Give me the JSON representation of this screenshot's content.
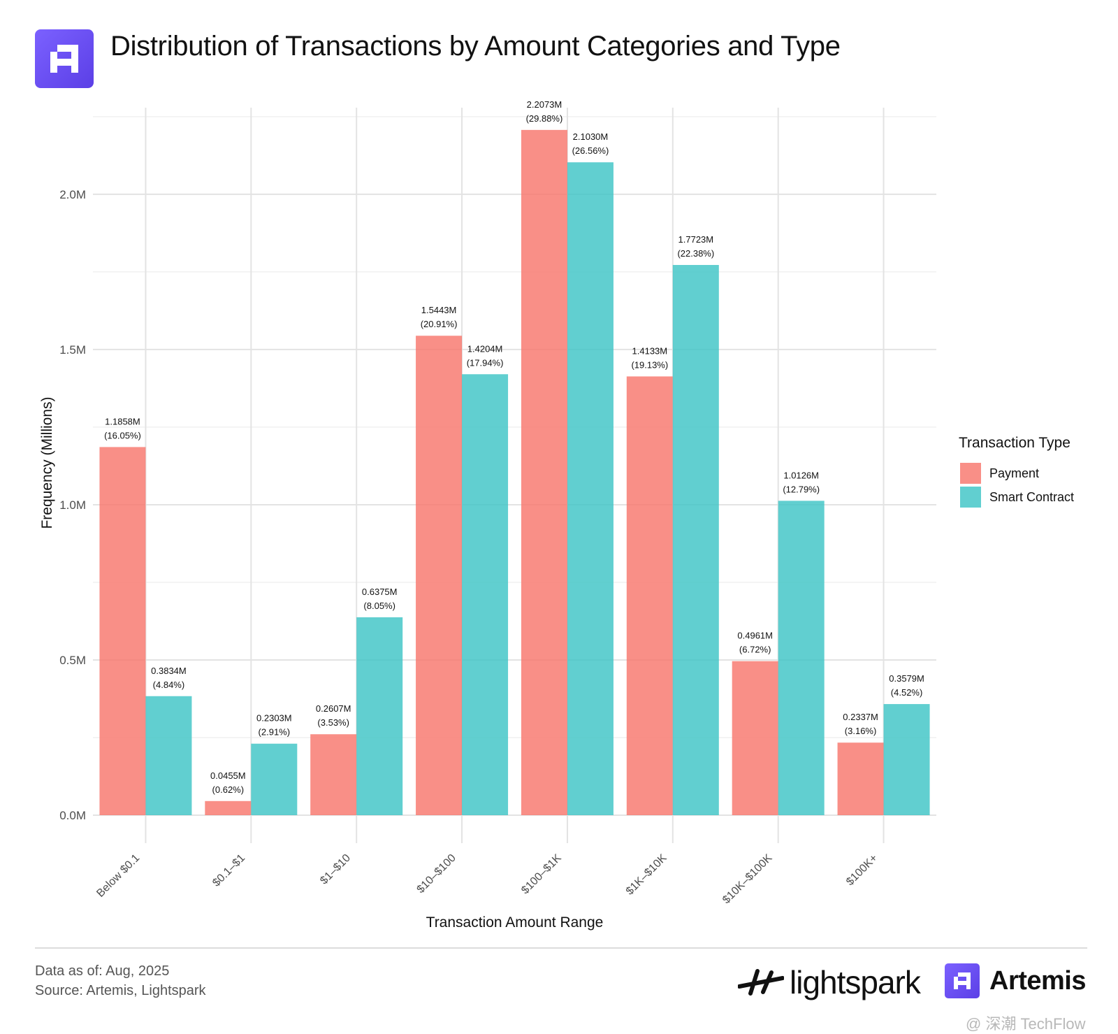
{
  "header": {
    "title": "Distribution of Transactions by Amount Categories and Type",
    "logo_icon": "artemis-logo-icon"
  },
  "chart_data": {
    "type": "bar",
    "title": "Distribution of Transactions by Amount Categories and Type",
    "xlabel": "Transaction Amount Range",
    "ylabel": "Frequency (Millions)",
    "ylim": [
      0,
      2.27
    ],
    "yticks": [
      "0.0M",
      "0.5M",
      "1.0M",
      "1.5M",
      "2.0M"
    ],
    "ytick_values": [
      0,
      0.5,
      1.0,
      1.5,
      2.0
    ],
    "grid": true,
    "legend_title": "Transaction Type",
    "legend_position": "right",
    "categories": [
      "Below $0.1",
      "$0.1–$1",
      "$1–$10",
      "$10–$100",
      "$100–$1K",
      "$1K–$10K",
      "$10K–$100K",
      "$100K+"
    ],
    "series": [
      {
        "name": "Payment",
        "color": "#f8766d",
        "values": [
          1.1858,
          0.0455,
          0.2607,
          1.5443,
          2.2073,
          1.4133,
          0.4961,
          0.2337
        ],
        "labels": [
          "1.1858M",
          "0.0455M",
          "0.2607M",
          "1.5443M",
          "2.2073M",
          "1.4133M",
          "0.4961M",
          "0.2337M"
        ],
        "percents": [
          "(16.05%)",
          "(0.62%)",
          "(3.53%)",
          "(20.91%)",
          "(29.88%)",
          "(19.13%)",
          "(6.72%)",
          "(3.16%)"
        ]
      },
      {
        "name": "Smart Contract",
        "color": "#3ec4c6",
        "values": [
          0.3834,
          0.2303,
          0.6375,
          1.4204,
          2.103,
          1.7723,
          1.0126,
          0.3579
        ],
        "labels": [
          "0.3834M",
          "0.2303M",
          "0.6375M",
          "1.4204M",
          "2.1030M",
          "1.7723M",
          "1.0126M",
          "0.3579M"
        ],
        "percents": [
          "(4.84%)",
          "(2.91%)",
          "(8.05%)",
          "(17.94%)",
          "(26.56%)",
          "(22.38%)",
          "(12.79%)",
          "(4.52%)"
        ]
      }
    ]
  },
  "footer": {
    "data_as_of": "Data as of: Aug, 2025",
    "source": "Source: Artemis, Lightspark",
    "brand_lightspark": "lightspark",
    "brand_artemis": "Artemis",
    "watermark": "@ 深潮 TechFlow"
  }
}
